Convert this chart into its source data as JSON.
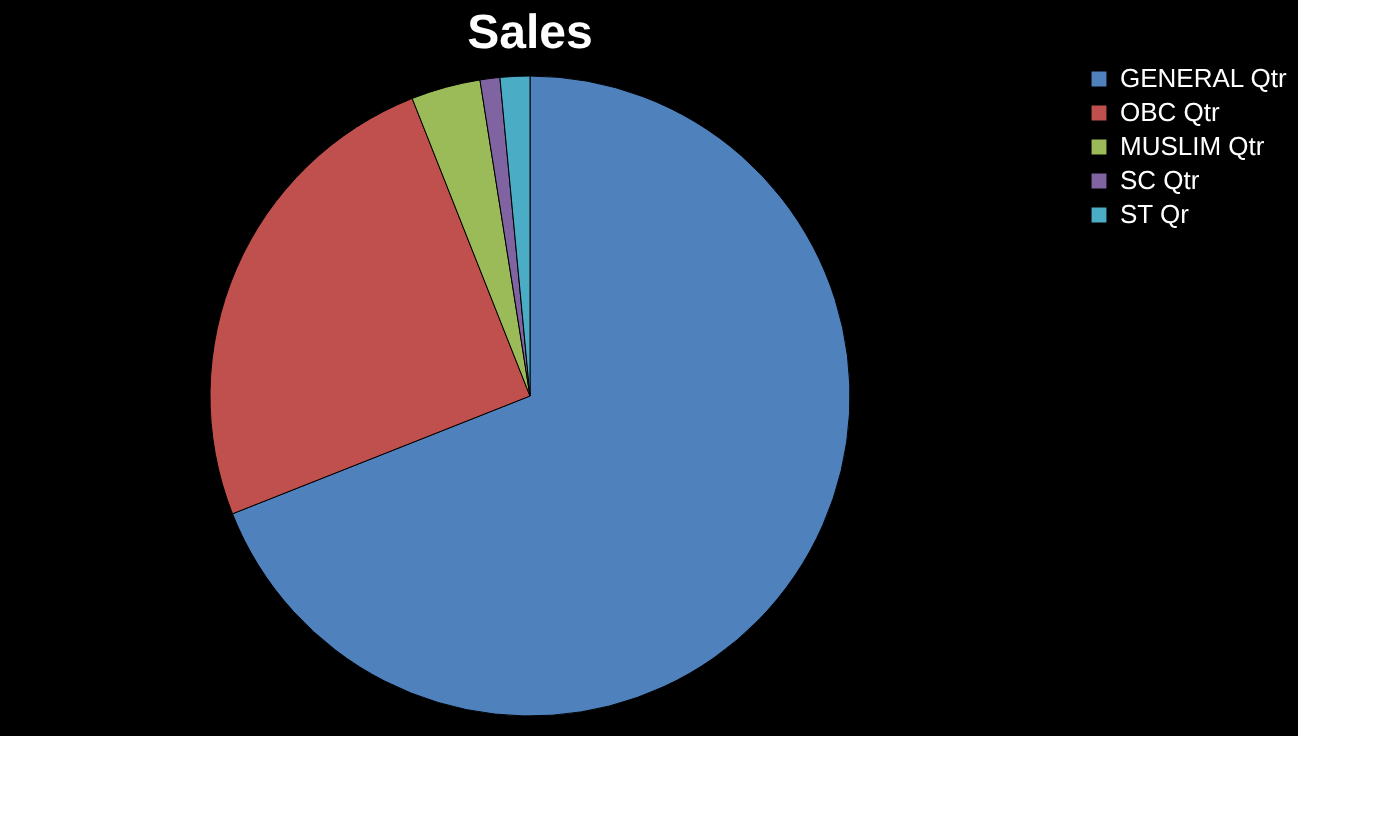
{
  "chart_data": {
    "type": "pie",
    "title": "Sales",
    "categories": [
      "GENERAL Qtr",
      "OBC  Qtr",
      "MUSLIM Qtr",
      "SC Qtr",
      "ST Qr"
    ],
    "values": [
      69,
      25,
      3.5,
      1,
      1.5
    ],
    "colors": [
      "#4f81bd",
      "#c0504d",
      "#9bbb59",
      "#8064a2",
      "#4bacc6"
    ],
    "legend": "right"
  }
}
